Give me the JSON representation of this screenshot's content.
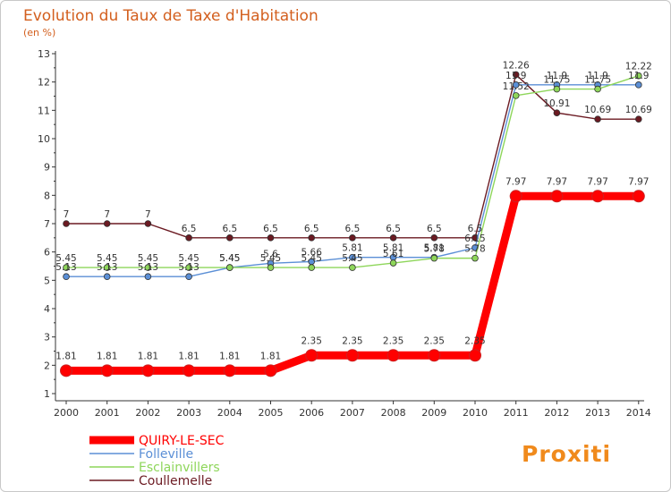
{
  "chart_data": {
    "type": "line",
    "title": "Evolution du Taux de Taxe d'Habitation",
    "ylabel": "(en %)",
    "xlabel": "",
    "categories": [
      "2000",
      "2001",
      "2002",
      "2003",
      "2004",
      "2005",
      "2006",
      "2007",
      "2008",
      "2009",
      "2010",
      "2011",
      "2012",
      "2013",
      "2014"
    ],
    "ylim": [
      1,
      13
    ],
    "yticks": [
      1,
      2,
      3,
      4,
      5,
      6,
      7,
      8,
      9,
      10,
      11,
      12,
      13
    ],
    "series": [
      {
        "name": "Coullemelle",
        "color": "#6b1a22",
        "width": 1.4,
        "values": [
          7,
          7,
          7,
          6.5,
          6.5,
          6.5,
          6.5,
          6.5,
          6.5,
          6.5,
          6.5,
          12.26,
          10.91,
          10.69,
          10.69
        ],
        "labels": [
          "7",
          "7",
          "7",
          "6.5",
          "6.5",
          "6.5",
          "6.5",
          "6.5",
          "6.5",
          "6.5",
          "6.5",
          "12.26",
          "10.91",
          "10.69",
          "10.69"
        ]
      },
      {
        "name": "Folleville",
        "color": "#5b8fd6",
        "width": 1.4,
        "values": [
          5.13,
          5.13,
          5.13,
          5.13,
          5.45,
          5.6,
          5.66,
          5.81,
          5.81,
          5.81,
          6.15,
          11.9,
          11.9,
          11.9,
          11.9
        ],
        "labels": [
          "5.13",
          "5.13",
          "5.13",
          "5.13",
          "5.45",
          "5.6",
          "5.66",
          "5.81",
          "5.81",
          "5.81",
          "6.15",
          "11.9",
          "11.9",
          "11.9",
          "11.9"
        ]
      },
      {
        "name": "Esclainvillers",
        "color": "#8ed65a",
        "width": 1.4,
        "values": [
          5.45,
          5.45,
          5.45,
          5.45,
          5.45,
          5.45,
          5.45,
          5.45,
          5.61,
          5.78,
          5.78,
          11.52,
          11.75,
          11.75,
          12.22
        ],
        "labels": [
          "5.45",
          "5.45",
          "5.45",
          "5.45",
          "5.45",
          "5.45",
          "5.45",
          "5.45",
          "5.61",
          "5.78",
          "5.78",
          "11.52",
          "11.75",
          "11.75",
          "12.22"
        ]
      },
      {
        "name": "QUIRY-LE-SEC",
        "color": "#ff0000",
        "width": 9,
        "values": [
          1.81,
          1.81,
          1.81,
          1.81,
          1.81,
          1.81,
          2.35,
          2.35,
          2.35,
          2.35,
          2.35,
          7.97,
          7.97,
          7.97,
          7.97
        ],
        "labels": [
          "1.81",
          "1.81",
          "1.81",
          "1.81",
          "1.81",
          "1.81",
          "2.35",
          "2.35",
          "2.35",
          "2.35",
          "2.35",
          "7.97",
          "7.97",
          "7.97",
          "7.97"
        ]
      }
    ],
    "legend": [
      {
        "name": "QUIRY-LE-SEC",
        "color": "#ff0000"
      },
      {
        "name": "Folleville",
        "color": "#5b8fd6"
      },
      {
        "name": "Esclainvillers",
        "color": "#8ed65a"
      },
      {
        "name": "Coullemelle",
        "color": "#6b1a22"
      }
    ],
    "grid": false,
    "legend_position": "bottom-left"
  },
  "branding": {
    "logo_text": "Proxiti"
  }
}
